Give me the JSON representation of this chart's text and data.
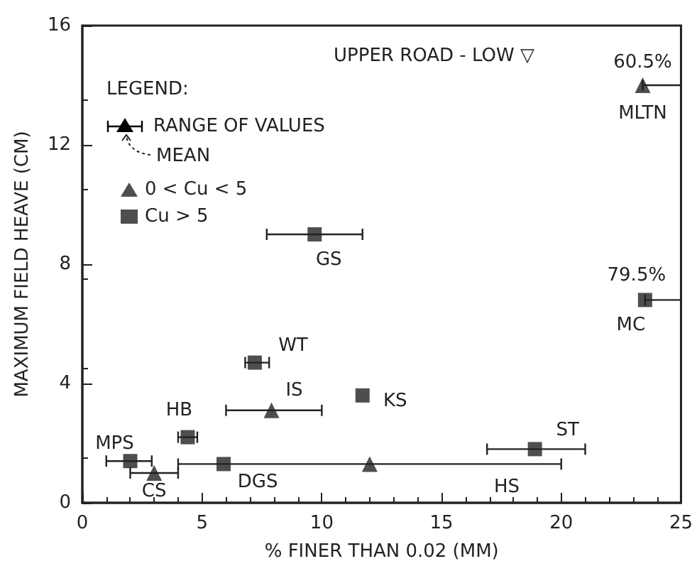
{
  "chart_data": {
    "type": "scatter",
    "title": "UPPER ROAD - LOW ▽",
    "xlabel": "% FINER THAN 0.02 (MM)",
    "ylabel": "MAXIMUM FIELD HEAVE (CM)",
    "legend_title": "LEGEND:",
    "xlim": [
      0,
      25
    ],
    "xticks": [
      0,
      5,
      10,
      15,
      20,
      25
    ],
    "ylim": [
      0,
      16
    ],
    "yticks": [
      0,
      4,
      8,
      12,
      16
    ],
    "grid": false,
    "legend": "top left",
    "series": [
      {
        "name": "0 < Cu < 5",
        "color": "#222222",
        "marker": "triangle",
        "x": [
          23.4,
          7.9,
          3.0,
          12.0
        ],
        "values": [
          14.0,
          3.1,
          1.0,
          1.3
        ],
        "xerrors": [
          [
            23.4,
            25
          ],
          [
            6,
            10
          ],
          [
            2,
            4
          ],
          [
            4,
            20
          ]
        ]
      },
      {
        "name": "Cu > 5",
        "color": "#222222",
        "marker": "square",
        "x": [
          23.5,
          9.7,
          7.2,
          11.7,
          4.4,
          2.0,
          5.9,
          18.9
        ],
        "values": [
          6.8,
          9.0,
          4.7,
          3.6,
          2.2,
          1.4,
          1.3,
          1.8
        ],
        "xerrors": [
          [
            23.5,
            25
          ],
          [
            7.7,
            11.7
          ],
          [
            6.8,
            7.8
          ],
          null,
          [
            4.0,
            4.8
          ],
          [
            1.0,
            2.9
          ],
          null,
          [
            16.9,
            21
          ]
        ]
      }
    ],
    "annotations": [
      {
        "text": "MLTN",
        "x": 23.4,
        "y": 14.0
      },
      {
        "text": "60.5%",
        "x": 23.4,
        "y": 14.0
      },
      {
        "text": "MC",
        "x": 23.5,
        "y": 6.8
      },
      {
        "text": "79.5%",
        "x": 23.5,
        "y": 6.8
      },
      {
        "text": "GS",
        "x": 9.7,
        "y": 9.0
      },
      {
        "text": "WT",
        "x": 7.2,
        "y": 4.7
      },
      {
        "text": "IS",
        "x": 7.9,
        "y": 3.1
      },
      {
        "text": "KS",
        "x": 11.7,
        "y": 3.6
      },
      {
        "text": "HB",
        "x": 4.4,
        "y": 2.2
      },
      {
        "text": "MPS",
        "x": 2.0,
        "y": 1.4
      },
      {
        "text": "CS",
        "x": 3.0,
        "y": 1.0
      },
      {
        "text": "DGS",
        "x": 5.9,
        "y": 1.3
      },
      {
        "text": "ST",
        "x": 18.9,
        "y": 1.8
      },
      "RANGE OF VALUES",
      "MEAN",
      "HS"
    ]
  }
}
